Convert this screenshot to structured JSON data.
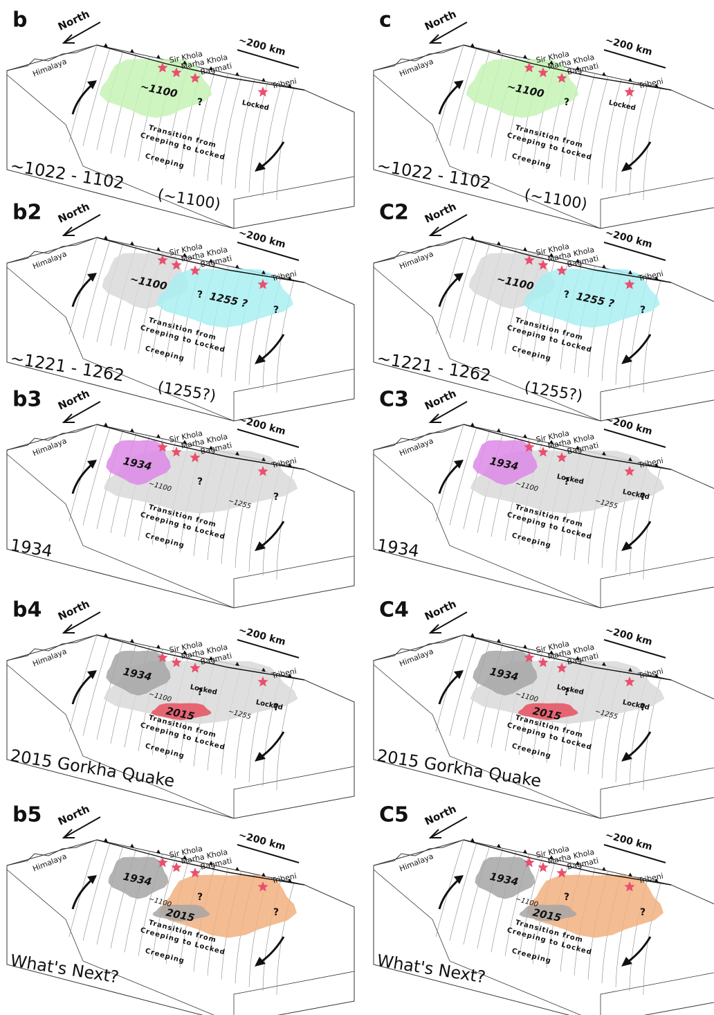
{
  "panels": [
    {
      "label": "b",
      "north": "North",
      "himalaya": "Himalaya",
      "scale": "~200 km",
      "sites": [
        "Sir Khola",
        "Marha Khola",
        "Bagmati",
        "Tribeni"
      ],
      "transition": [
        "Transition from",
        "Creeping to Locked"
      ],
      "creeping": "Creeping",
      "locked": [
        "Locked"
      ],
      "patches": [
        {
          "label": "~1100",
          "color": "#c6f3b5"
        }
      ],
      "small": [],
      "questions": [
        "?"
      ],
      "date": "~1022 - 1102",
      "note": "(~1100)"
    },
    {
      "label": "c",
      "north": "North",
      "himalaya": "Himalaya",
      "scale": "~200 km",
      "sites": [
        "Sir Khola",
        "Marha Khola",
        "Bagmati",
        "Tribeni"
      ],
      "transition": [
        "Transition from",
        "Creeping to Locked"
      ],
      "creeping": "Creeping",
      "locked": [
        "Locked"
      ],
      "patches": [
        {
          "label": "~1100",
          "color": "#c6f3b5"
        }
      ],
      "small": [],
      "questions": [
        "?"
      ],
      "date": "~1022 - 1102",
      "note": "(~1100)"
    },
    {
      "label": "b2",
      "north": "North",
      "himalaya": "Himalaya",
      "scale": "~200 km",
      "sites": [
        "Sir Khola",
        "Marha Khola",
        "Bagmati",
        "Tribeni"
      ],
      "transition": [
        "Transition from",
        "Creeping to Locked"
      ],
      "creeping": "Creeping",
      "locked": [],
      "patches": [
        {
          "label": "~1100",
          "color": "#d9d9d9"
        },
        {
          "label": "1255 ?",
          "color": "#a9eef2"
        }
      ],
      "small": [],
      "questions": [
        "?",
        "?"
      ],
      "date": "~1221 - 1262",
      "note": "(1255?)"
    },
    {
      "label": "C2",
      "north": "North",
      "himalaya": "Himalaya",
      "scale": "~200 km",
      "sites": [
        "Sir Khola",
        "Marha Khola",
        "Bagmati",
        "Tribeni"
      ],
      "transition": [
        "Transition from",
        "Creeping to Locked"
      ],
      "creeping": "Creeping",
      "locked": [],
      "patches": [
        {
          "label": "~1100",
          "color": "#d9d9d9"
        },
        {
          "label": "1255 ?",
          "color": "#a9eef2"
        }
      ],
      "small": [],
      "questions": [
        "?",
        "?"
      ],
      "date": "~1221 - 1262",
      "note": "(1255?)"
    },
    {
      "label": "b3",
      "north": "North",
      "himalaya": "Himalaya",
      "scale": "~200 km",
      "sites": [
        "Sir Khola",
        "Marha Khola",
        "Bagmati",
        "Tribeni"
      ],
      "transition": [
        "Transition from",
        "Creeping to Locked"
      ],
      "creeping": "Creeping",
      "locked": [],
      "patches": [
        {
          "color": "#d9d9d9"
        },
        {
          "label": "1934",
          "color": "#dd88e6"
        }
      ],
      "small": [
        "~1100",
        "~1255"
      ],
      "questions": [
        "?",
        "?"
      ],
      "date": "1934"
    },
    {
      "label": "C3",
      "north": "North",
      "himalaya": "Himalaya",
      "scale": "~200 km",
      "sites": [
        "Sir Khola",
        "Marha Khola",
        "Bagmati",
        "Tribeni"
      ],
      "transition": [
        "Transition from",
        "Creeping to Locked"
      ],
      "creeping": "Creeping",
      "locked": [
        "Locked",
        "Locked"
      ],
      "patches": [
        {
          "color": "#d9d9d9"
        },
        {
          "label": "1934",
          "color": "#dd88e6"
        }
      ],
      "small": [
        "~1100",
        "~1255"
      ],
      "questions": [
        "?",
        "?"
      ],
      "date": "1934"
    },
    {
      "label": "b4",
      "north": "North",
      "himalaya": "Himalaya",
      "scale": "~200 km",
      "sites": [
        "Sir Khola",
        "Marha Khola",
        "Bagmati",
        "Tribeni"
      ],
      "transition": [
        "Transition from",
        "Creeping to Locked"
      ],
      "creeping": "Creeping",
      "locked": [
        "Locked",
        "Locked"
      ],
      "patches": [
        {
          "color": "#d9d9d9"
        },
        {
          "label": "1934",
          "color": "#a6a6a6"
        },
        {
          "label": "2015",
          "color": "#e8505f"
        }
      ],
      "small": [
        "~1100",
        "~1255"
      ],
      "questions": [
        "?",
        "?"
      ],
      "date": "2015  Gorkha Quake"
    },
    {
      "label": "C4",
      "north": "North",
      "himalaya": "Himalaya",
      "scale": "~200 km",
      "sites": [
        "Sir Khola",
        "Marha Khola",
        "Bagmati",
        "Tribeni"
      ],
      "transition": [
        "Transition from",
        "Creeping to Locked"
      ],
      "creeping": "Creeping",
      "locked": [
        "Locked",
        "Locked"
      ],
      "patches": [
        {
          "color": "#d9d9d9"
        },
        {
          "label": "1934",
          "color": "#a6a6a6"
        },
        {
          "label": "2015",
          "color": "#e8505f"
        }
      ],
      "small": [
        "~1100",
        "~1255"
      ],
      "questions": [
        "?",
        "?"
      ],
      "date": "2015  Gorkha Quake"
    },
    {
      "label": "b5",
      "north": "North",
      "himalaya": "Himalaya",
      "scale": "~200 km",
      "sites": [
        "Sir Khola",
        "Marha Khola",
        "Bagmati",
        "Tribeni"
      ],
      "transition": [
        "Transition from",
        "Creeping to Locked"
      ],
      "creeping": "Creeping",
      "locked": [],
      "patches": [
        {
          "color": "#f2b07f"
        },
        {
          "label": "1934",
          "color": "#a6a6a6"
        },
        {
          "label": "2015",
          "color": "#a6a6a6"
        }
      ],
      "small": [
        "~1100"
      ],
      "questions": [
        "?",
        "?"
      ],
      "date": "What's Next?"
    },
    {
      "label": "C5",
      "north": "North",
      "himalaya": "Himalaya",
      "scale": "~200 km",
      "sites": [
        "Sir Khola",
        "Marha Khola",
        "Bagmati",
        "Tribeni"
      ],
      "transition": [
        "Transition from",
        "Creeping to Locked"
      ],
      "creeping": "Creeping",
      "locked": [],
      "patches": [
        {
          "color": "#f2b07f"
        },
        {
          "label": "1934",
          "color": "#a6a6a6"
        },
        {
          "label": "2015",
          "color": "#a6a6a6"
        }
      ],
      "small": [
        "~1100"
      ],
      "questions": [
        "?",
        "?"
      ],
      "date": "What's Next?"
    }
  ]
}
